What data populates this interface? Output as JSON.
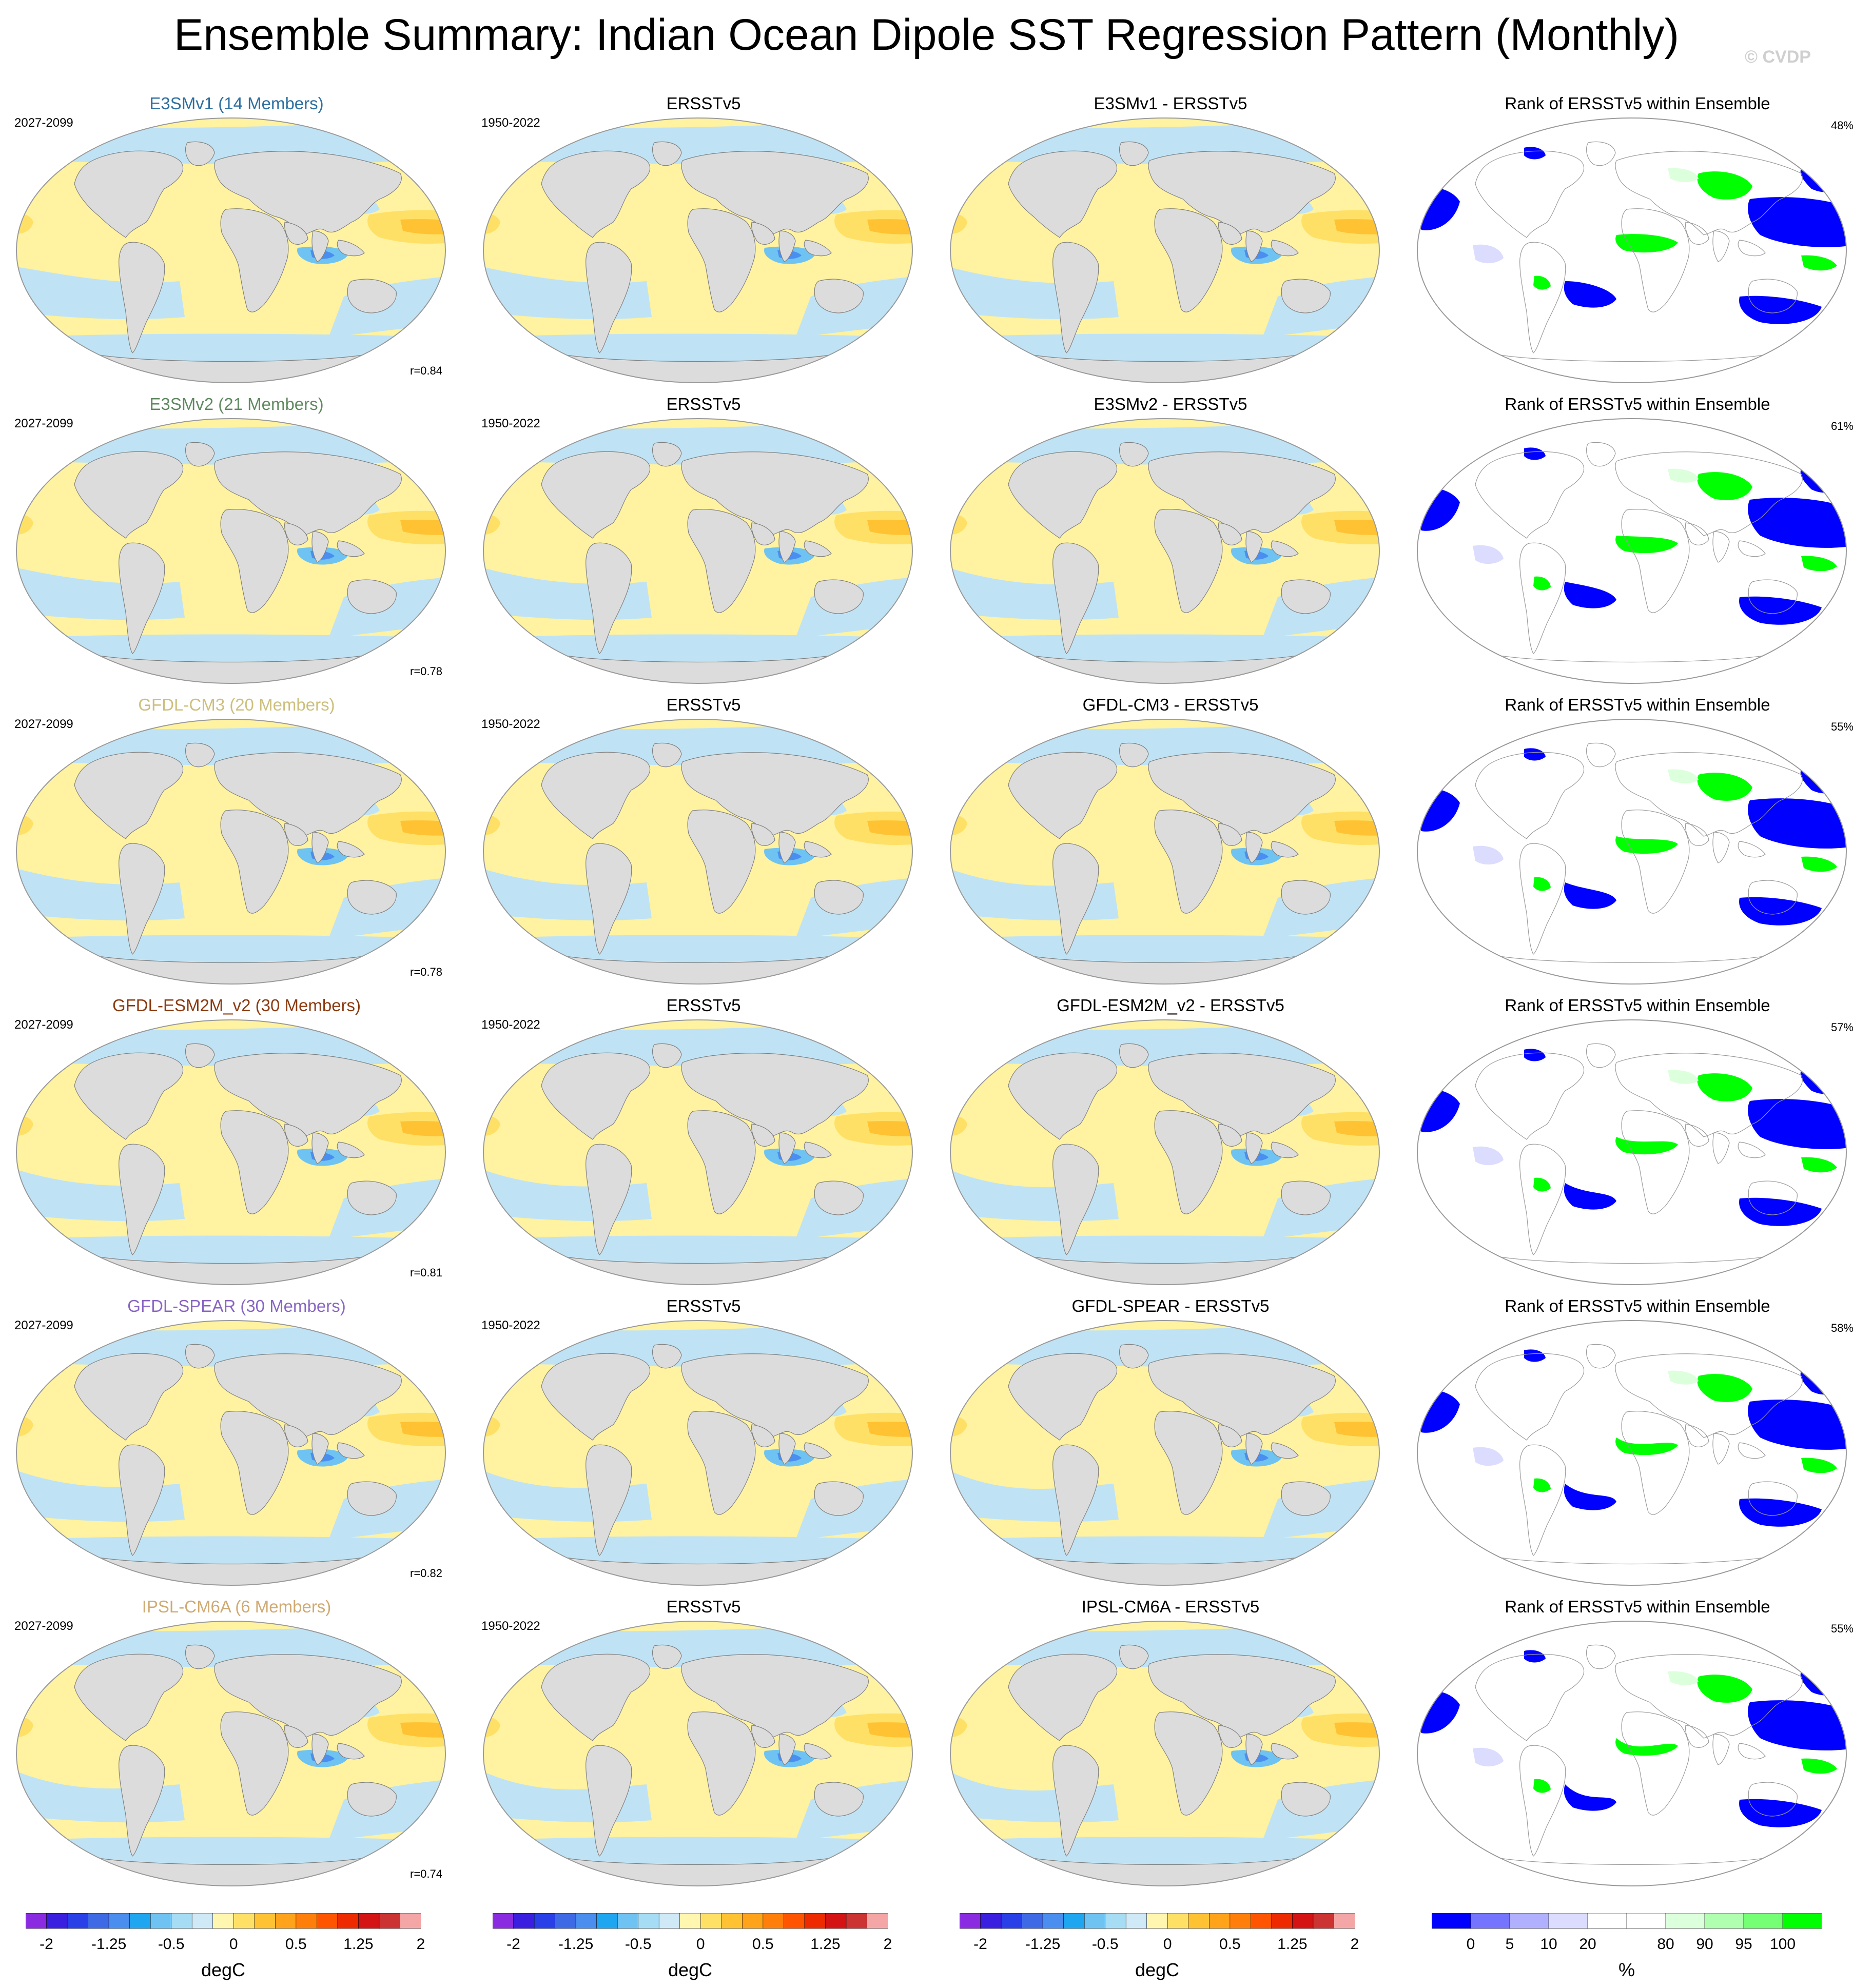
{
  "title": "Ensemble Summary: Indian Ocean Dipole SST Regression Pattern (Monthly)",
  "watermark": "© CVDP",
  "rows": [
    {
      "model": {
        "title": "E3SMv1 (14 Members)",
        "color": "#2d6fa0",
        "years": "2027-2099",
        "corr": "r=0.84"
      },
      "obs": {
        "title": "ERSSTv5",
        "years": "1950-2022"
      },
      "diff": {
        "title": "E3SMv1 - ERSSTv5"
      },
      "rank": {
        "title": "Rank of ERSSTv5 within Ensemble",
        "pct": "48%"
      }
    },
    {
      "model": {
        "title": "E3SMv2 (21 Members)",
        "color": "#5f8a60",
        "years": "2027-2099",
        "corr": "r=0.78"
      },
      "obs": {
        "title": "ERSSTv5",
        "years": "1950-2022"
      },
      "diff": {
        "title": "E3SMv2 - ERSSTv5"
      },
      "rank": {
        "title": "Rank of ERSSTv5 within Ensemble",
        "pct": "61%"
      }
    },
    {
      "model": {
        "title": "GFDL-CM3 (20 Members)",
        "color": "#cdbf7c",
        "years": "2027-2099",
        "corr": "r=0.78"
      },
      "obs": {
        "title": "ERSSTv5",
        "years": "1950-2022"
      },
      "diff": {
        "title": "GFDL-CM3 - ERSSTv5"
      },
      "rank": {
        "title": "Rank of ERSSTv5 within Ensemble",
        "pct": "55%"
      }
    },
    {
      "model": {
        "title": "GFDL-ESM2M_v2 (30 Members)",
        "color": "#8b3a10",
        "years": "2027-2099",
        "corr": "r=0.81"
      },
      "obs": {
        "title": "ERSSTv5",
        "years": "1950-2022"
      },
      "diff": {
        "title": "GFDL-ESM2M_v2 - ERSSTv5"
      },
      "rank": {
        "title": "Rank of ERSSTv5 within Ensemble",
        "pct": "57%"
      }
    },
    {
      "model": {
        "title": "GFDL-SPEAR (30 Members)",
        "color": "#8866c4",
        "years": "2027-2099",
        "corr": "r=0.82"
      },
      "obs": {
        "title": "ERSSTv5",
        "years": "1950-2022"
      },
      "diff": {
        "title": "GFDL-SPEAR - ERSSTv5"
      },
      "rank": {
        "title": "Rank of ERSSTv5 within Ensemble",
        "pct": "58%"
      }
    },
    {
      "model": {
        "title": "IPSL-CM6A (6 Members)",
        "color": "#d0aa72",
        "years": "2027-2099",
        "corr": "r=0.74"
      },
      "obs": {
        "title": "ERSSTv5",
        "years": "1950-2022"
      },
      "diff": {
        "title": "IPSL-CM6A - ERSSTv5"
      },
      "rank": {
        "title": "Rank of ERSSTv5 within Ensemble",
        "pct": "55%"
      }
    }
  ],
  "colorbars": {
    "sst": {
      "units": "degC",
      "ticks": [
        "-2",
        "-1.25",
        "-0.5",
        "0",
        "0.5",
        "1.25",
        "2"
      ],
      "colors": [
        "#8a2be2",
        "#3a1fe0",
        "#2940e8",
        "#3f6ae6",
        "#4a8ef0",
        "#1fa6f0",
        "#6ec3f2",
        "#a6dcf4",
        "#cfeaf6",
        "#fff6b0",
        "#ffe066",
        "#ffc233",
        "#ffa31a",
        "#ff7f0a",
        "#ff5500",
        "#ee2a00",
        "#d41414",
        "#cc3333",
        "#f4a6a6"
      ]
    },
    "rank": {
      "units": "%",
      "ticks": [
        "0",
        "5",
        "10",
        "20",
        "80",
        "90",
        "95",
        "100"
      ],
      "colors": [
        "#0000ff",
        "#7474ff",
        "#b0b0ff",
        "#dcdcff",
        "#ffffff",
        "#ffffff",
        "#dcffdc",
        "#b0ffb0",
        "#74ff74",
        "#00ff00"
      ]
    }
  },
  "legend_colors": {
    "land": "#dcdcdc",
    "pos_weak": "#fff2a0",
    "neg_weak": "#bfe3f5",
    "rank_low": "#0000ff",
    "rank_high": "#00ff00"
  }
}
